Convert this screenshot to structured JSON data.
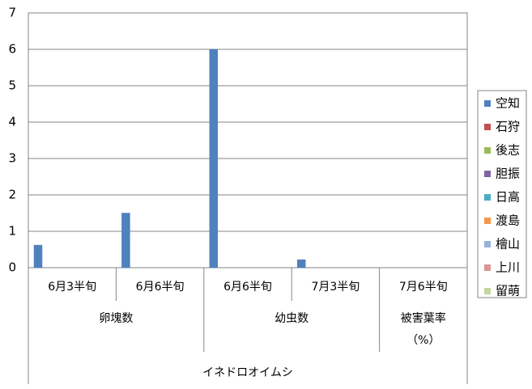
{
  "chart_data": {
    "type": "bar",
    "categories": [
      "6月3半旬",
      "6月6半旬",
      "6月6半旬",
      "7月3半旬",
      "7月6半旬"
    ],
    "categories_2": [
      "卵塊数",
      null,
      "幼虫数",
      null,
      "被害葉率\n（%）"
    ],
    "categories_3": [
      "イネドロオイムシ",
      null,
      null,
      null,
      null
    ],
    "series": [
      {
        "name": "空知",
        "color": "#4f81bd",
        "values": [
          0.62,
          1.5,
          6,
          0.22,
          null
        ]
      },
      {
        "name": "石狩",
        "color": "#c0504d",
        "values": [
          null,
          null,
          null,
          null,
          null
        ]
      },
      {
        "name": "後志",
        "color": "#9bbb59",
        "values": [
          null,
          null,
          null,
          null,
          null
        ]
      },
      {
        "name": "胆振",
        "color": "#8064a2",
        "values": [
          null,
          null,
          null,
          null,
          null
        ]
      },
      {
        "name": "日高",
        "color": "#4bacc6",
        "values": [
          null,
          null,
          null,
          null,
          null
        ]
      },
      {
        "name": "渡島",
        "color": "#f79646",
        "values": [
          null,
          null,
          null,
          null,
          null
        ]
      },
      {
        "name": "檜山",
        "color": "#95b3d7",
        "values": [
          null,
          null,
          null,
          null,
          null
        ]
      },
      {
        "name": "上川",
        "color": "#d99694",
        "values": [
          null,
          null,
          null,
          null,
          null
        ]
      },
      {
        "name": "留萌",
        "color": "#c3d69b",
        "values": [
          null,
          null,
          null,
          null,
          null
        ]
      }
    ],
    "ylim": [
      0,
      7
    ],
    "yticks": [
      0,
      1,
      2,
      3,
      4,
      5,
      6,
      7
    ],
    "grid": true,
    "legend": "right"
  }
}
